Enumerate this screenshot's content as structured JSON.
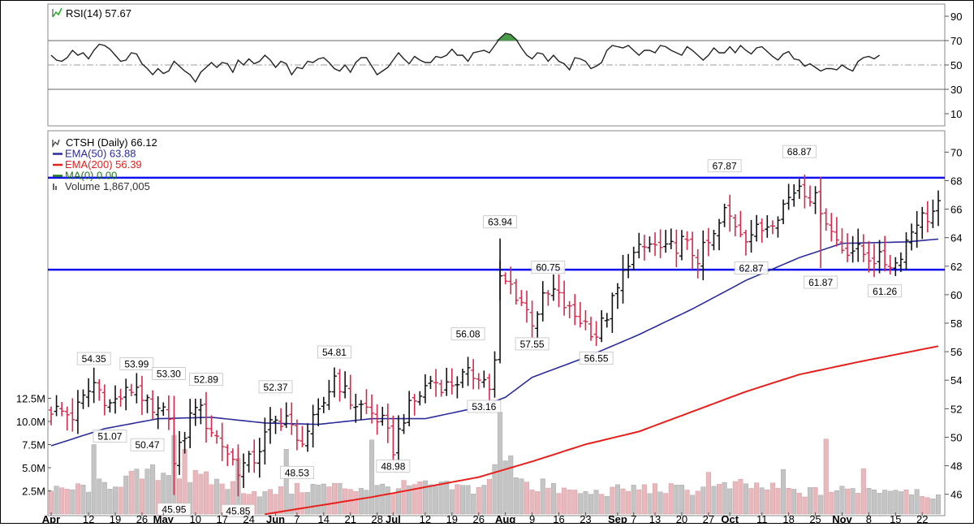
{
  "chart_data": [
    {
      "type": "line",
      "indicator": "RSI(14)",
      "title": "RSI(14) 57.67",
      "ylim": [
        0,
        100
      ],
      "y_ticks": [
        10,
        30,
        50,
        70,
        90
      ],
      "ref_lines": [
        30,
        50,
        70
      ],
      "series": [
        {
          "name": "RSI(14)",
          "values": [
            58,
            54,
            53,
            56,
            62,
            58,
            60,
            55,
            62,
            67,
            66,
            63,
            58,
            53,
            54,
            60,
            59,
            51,
            47,
            42,
            47,
            43,
            45,
            53,
            49,
            45,
            42,
            36,
            44,
            48,
            52,
            48,
            52,
            51,
            44,
            54,
            50,
            55,
            51,
            53,
            58,
            54,
            48,
            53,
            51,
            42,
            48,
            47,
            53,
            52,
            55,
            56,
            52,
            47,
            45,
            50,
            44,
            52,
            56,
            56,
            49,
            42,
            45,
            48,
            54,
            60,
            55,
            51,
            57,
            54,
            52,
            52,
            57,
            56,
            58,
            63,
            58,
            58,
            53,
            60,
            61,
            62,
            60,
            66,
            72,
            76,
            75,
            71,
            64,
            58,
            55,
            60,
            59,
            53,
            58,
            53,
            51,
            46,
            56,
            55,
            53,
            47,
            49,
            52,
            62,
            66,
            65,
            64,
            66,
            62,
            58,
            62,
            62,
            60,
            66,
            65,
            62,
            60,
            58,
            65,
            62,
            58,
            54,
            58,
            64,
            60,
            60,
            65,
            60,
            66,
            62,
            59,
            64,
            65,
            61,
            57,
            54,
            59,
            61,
            55,
            54,
            49,
            51,
            48,
            45,
            47,
            47,
            46,
            50,
            47,
            45,
            53,
            56,
            57,
            55,
            58
          ]
        }
      ]
    },
    {
      "type": "ohlc",
      "title": "CTSH (Daily) 66.12",
      "ylim": [
        44.5,
        71.5
      ],
      "y_ticks": [
        46,
        48,
        50,
        52,
        54,
        56,
        58,
        60,
        62,
        64,
        66,
        68,
        70
      ],
      "volume_ticks": [
        "2.5M",
        "5.0M",
        "7.5M",
        "10.0M",
        "12.5M"
      ],
      "volume_tick_values": [
        2.5,
        5.0,
        7.5,
        10.0,
        12.5
      ],
      "x_labels": [
        {
          "label": "Apr",
          "bold": true,
          "day": 0
        },
        {
          "label": "12",
          "bold": false,
          "day": 7
        },
        {
          "label": "19",
          "bold": false,
          "day": 12
        },
        {
          "label": "26",
          "bold": false,
          "day": 17
        },
        {
          "label": "May",
          "bold": true,
          "day": 21
        },
        {
          "label": "10",
          "bold": false,
          "day": 27
        },
        {
          "label": "17",
          "bold": false,
          "day": 32
        },
        {
          "label": "24",
          "bold": false,
          "day": 37
        },
        {
          "label": "Jun",
          "bold": true,
          "day": 42
        },
        {
          "label": "7",
          "bold": false,
          "day": 46
        },
        {
          "label": "14",
          "bold": false,
          "day": 51
        },
        {
          "label": "21",
          "bold": false,
          "day": 56
        },
        {
          "label": "28",
          "bold": false,
          "day": 61
        },
        {
          "label": "Jul",
          "bold": true,
          "day": 64
        },
        {
          "label": "12",
          "bold": false,
          "day": 70
        },
        {
          "label": "19",
          "bold": false,
          "day": 75
        },
        {
          "label": "26",
          "bold": false,
          "day": 80
        },
        {
          "label": "Aug",
          "bold": true,
          "day": 85
        },
        {
          "label": "9",
          "bold": false,
          "day": 90
        },
        {
          "label": "16",
          "bold": false,
          "day": 95
        },
        {
          "label": "23",
          "bold": false,
          "day": 100
        },
        {
          "label": "Sep",
          "bold": true,
          "day": 106
        },
        {
          "label": "7",
          "bold": false,
          "day": 109
        },
        {
          "label": "13",
          "bold": false,
          "day": 113
        },
        {
          "label": "20",
          "bold": false,
          "day": 118
        },
        {
          "label": "27",
          "bold": false,
          "day": 123
        },
        {
          "label": "Oct",
          "bold": true,
          "day": 127
        },
        {
          "label": "11",
          "bold": false,
          "day": 133
        },
        {
          "label": "18",
          "bold": false,
          "day": 138
        },
        {
          "label": "25",
          "bold": false,
          "day": 143
        },
        {
          "label": "Nov",
          "bold": true,
          "day": 148
        },
        {
          "label": "8",
          "bold": false,
          "day": 153
        },
        {
          "label": "15",
          "bold": false,
          "day": 158
        },
        {
          "label": "22",
          "bold": false,
          "day": 163
        }
      ],
      "legend": [
        {
          "text": "CTSH (Daily) 66.12",
          "color": "#000000"
        },
        {
          "text": "EMA(50) 63.88",
          "color": "#2b2b9c"
        },
        {
          "text": "EMA(200) 56.39",
          "color": "#e8201c"
        },
        {
          "text": "MA(0) 0.00",
          "color": "#1a7a1a"
        },
        {
          "text": "Volume 1,867,005",
          "color": "#555555"
        }
      ],
      "horizontal_lines": [
        68.2,
        61.75
      ],
      "annotations": [
        {
          "text": "54.35",
          "day": 8,
          "price": 54.35,
          "pos": "above"
        },
        {
          "text": "53.99",
          "day": 16,
          "price": 53.99,
          "pos": "above"
        },
        {
          "text": "53.30",
          "day": 22,
          "price": 53.3,
          "pos": "above"
        },
        {
          "text": "52.89",
          "day": 29,
          "price": 52.89,
          "pos": "above"
        },
        {
          "text": "52.37",
          "day": 42,
          "price": 52.37,
          "pos": "above"
        },
        {
          "text": "54.81",
          "day": 53,
          "price": 54.81,
          "pos": "above"
        },
        {
          "text": "56.08",
          "day": 78,
          "price": 56.08,
          "pos": "above"
        },
        {
          "text": "63.94",
          "day": 84,
          "price": 63.94,
          "pos": "above"
        },
        {
          "text": "60.75",
          "day": 93,
          "price": 60.75,
          "pos": "above"
        },
        {
          "text": "67.87",
          "day": 126,
          "price": 67.87,
          "pos": "above"
        },
        {
          "text": "68.87",
          "day": 140,
          "price": 68.87,
          "pos": "above"
        },
        {
          "text": "51.07",
          "day": 11,
          "price": 51.07,
          "pos": "below"
        },
        {
          "text": "50.47",
          "day": 18,
          "price": 50.47,
          "pos": "below"
        },
        {
          "text": "45.95",
          "day": 23,
          "price": 45.95,
          "pos": "below"
        },
        {
          "text": "45.85",
          "day": 35,
          "price": 45.85,
          "pos": "below"
        },
        {
          "text": "48.53",
          "day": 46,
          "price": 48.53,
          "pos": "below"
        },
        {
          "text": "48.98",
          "day": 64,
          "price": 48.98,
          "pos": "below"
        },
        {
          "text": "53.16",
          "day": 81,
          "price": 53.16,
          "pos": "below"
        },
        {
          "text": "57.55",
          "day": 90,
          "price": 57.55,
          "pos": "below"
        },
        {
          "text": "56.55",
          "day": 102,
          "price": 56.55,
          "pos": "below"
        },
        {
          "text": "62.87",
          "day": 131,
          "price": 62.87,
          "pos": "below"
        },
        {
          "text": "61.87",
          "day": 144,
          "price": 61.87,
          "pos": "below"
        },
        {
          "text": "61.26",
          "day": 156,
          "price": 61.26,
          "pos": "below"
        }
      ],
      "ema50_anchor_points": [
        [
          0,
          49.4
        ],
        [
          10,
          50.6
        ],
        [
          20,
          51.3
        ],
        [
          30,
          51.4
        ],
        [
          40,
          51
        ],
        [
          50,
          50.9
        ],
        [
          60,
          51.3
        ],
        [
          70,
          51.3
        ],
        [
          80,
          52.1
        ],
        [
          85,
          52.8
        ],
        [
          90,
          54.2
        ],
        [
          100,
          55.6
        ],
        [
          110,
          57.2
        ],
        [
          120,
          59
        ],
        [
          130,
          61
        ],
        [
          140,
          62.6
        ],
        [
          148,
          63.6
        ],
        [
          160,
          63.7
        ],
        [
          166,
          63.9
        ]
      ],
      "ema200_anchor_points": [
        [
          30,
          44.2
        ],
        [
          40,
          44.6
        ],
        [
          60,
          45.8
        ],
        [
          80,
          47.2
        ],
        [
          90,
          48.3
        ],
        [
          100,
          49.5
        ],
        [
          110,
          50.4
        ],
        [
          120,
          51.8
        ],
        [
          130,
          53.2
        ],
        [
          140,
          54.4
        ],
        [
          150,
          55.2
        ],
        [
          166,
          56.39
        ]
      ],
      "ohlc_anchor_prices": [
        [
          0,
          52
        ],
        [
          4,
          51.5
        ],
        [
          8,
          53.8
        ],
        [
          11,
          52.3
        ],
        [
          16,
          53.6
        ],
        [
          19,
          51.5
        ],
        [
          22,
          51.8
        ],
        [
          23,
          48
        ],
        [
          27,
          52.5
        ],
        [
          29,
          51
        ],
        [
          32,
          49.5
        ],
        [
          35,
          47.8
        ],
        [
          38,
          48.5
        ],
        [
          41,
          50.8
        ],
        [
          44,
          51.5
        ],
        [
          46,
          49.5
        ],
        [
          50,
          51.5
        ],
        [
          53,
          54.3
        ],
        [
          56,
          52.5
        ],
        [
          59,
          52
        ],
        [
          62,
          51
        ],
        [
          64,
          49.2
        ],
        [
          66,
          51.5
        ],
        [
          68,
          52.5
        ],
        [
          71,
          54
        ],
        [
          74,
          53.6
        ],
        [
          77,
          54.2
        ],
        [
          80,
          54.5
        ],
        [
          82,
          53.5
        ],
        [
          83,
          55.2
        ],
        [
          84,
          61
        ],
        [
          86,
          60.6
        ],
        [
          88,
          59.5
        ],
        [
          90,
          58.2
        ],
        [
          92,
          59.6
        ],
        [
          94,
          60.2
        ],
        [
          97,
          58.8
        ],
        [
          100,
          58
        ],
        [
          102,
          57.2
        ],
        [
          104,
          58.6
        ],
        [
          106,
          60.3
        ],
        [
          108,
          62.5
        ],
        [
          112,
          63.5
        ],
        [
          115,
          63
        ],
        [
          118,
          63.7
        ],
        [
          121,
          62.6
        ],
        [
          124,
          64
        ],
        [
          126,
          65.8
        ],
        [
          128,
          65
        ],
        [
          130,
          64.2
        ],
        [
          133,
          64.6
        ],
        [
          136,
          65.8
        ],
        [
          138,
          66.8
        ],
        [
          140,
          67.8
        ],
        [
          142,
          67
        ],
        [
          144,
          66.2
        ],
        [
          146,
          64.4
        ],
        [
          148,
          63.3
        ],
        [
          150,
          63.2
        ],
        [
          153,
          62.7
        ],
        [
          156,
          62.3
        ],
        [
          158,
          62.2
        ],
        [
          160,
          63.8
        ],
        [
          162,
          65.3
        ],
        [
          164,
          65.5
        ],
        [
          166,
          66.12
        ]
      ],
      "volume_anchor_values": [
        [
          0,
          2.4
        ],
        [
          10,
          3.2
        ],
        [
          20,
          4.5
        ],
        [
          30,
          3.6
        ],
        [
          40,
          2.2
        ],
        [
          50,
          3
        ],
        [
          60,
          2.8
        ],
        [
          70,
          3
        ],
        [
          80,
          2.7
        ],
        [
          85,
          6
        ],
        [
          90,
          3
        ],
        [
          100,
          2.2
        ],
        [
          110,
          2.8
        ],
        [
          120,
          2.6
        ],
        [
          130,
          3.1
        ],
        [
          140,
          2.3
        ],
        [
          150,
          2.6
        ],
        [
          160,
          2.8
        ],
        [
          166,
          1.87
        ]
      ],
      "volume_spikes": [
        [
          8,
          7.5
        ],
        [
          23,
          8.5
        ],
        [
          25,
          7
        ],
        [
          35,
          6
        ],
        [
          44,
          7
        ],
        [
          60,
          8
        ],
        [
          84,
          11
        ],
        [
          92,
          3.8
        ],
        [
          145,
          8.1
        ],
        [
          152,
          4.9
        ],
        [
          137,
          4.8
        ],
        [
          123,
          4.5
        ]
      ]
    }
  ]
}
